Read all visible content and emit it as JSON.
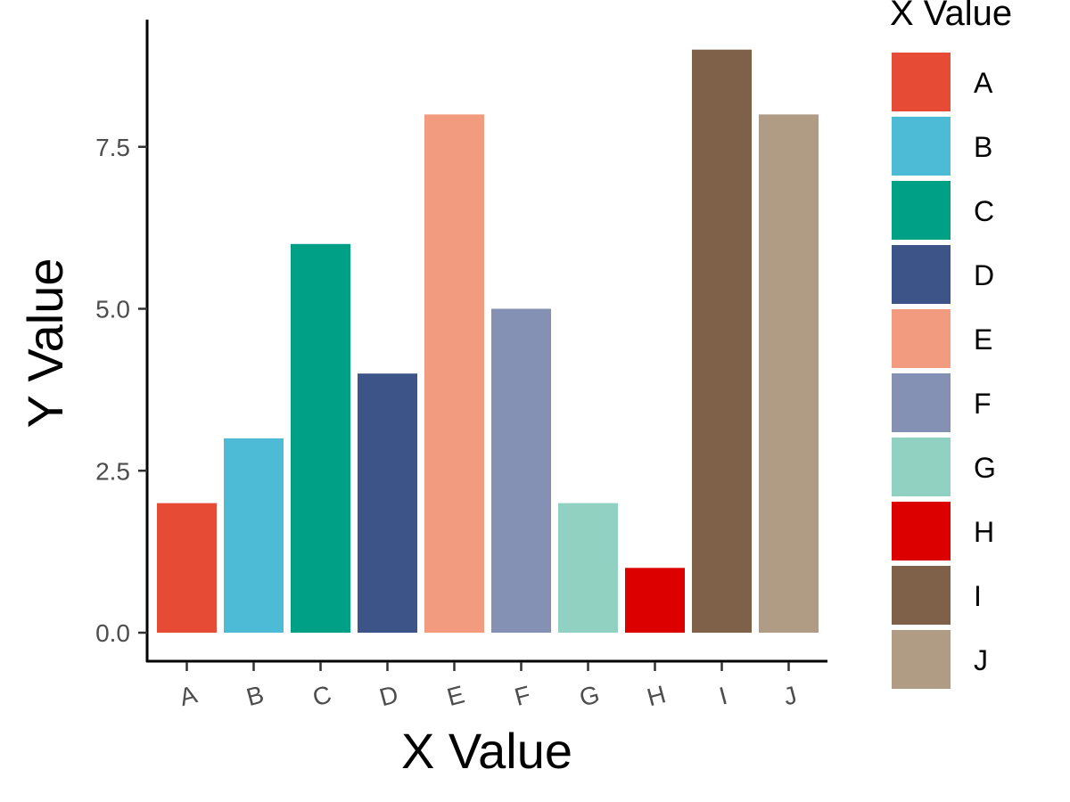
{
  "chart_data": {
    "type": "bar",
    "categories": [
      "A",
      "B",
      "C",
      "D",
      "E",
      "F",
      "G",
      "H",
      "I",
      "J"
    ],
    "values": [
      2,
      3,
      6,
      4,
      8,
      5,
      2,
      1,
      9,
      8
    ],
    "colors": [
      "#E64B35",
      "#4DBBD5",
      "#00A087",
      "#3C5488",
      "#F39B7F",
      "#8491B4",
      "#91D1C2",
      "#DC0000",
      "#7E6148",
      "#B09C85"
    ],
    "xlabel": "X Value",
    "ylabel": "Y Value",
    "ylim": [
      0,
      9
    ],
    "yticks": [
      0,
      2.5,
      5,
      7.5
    ],
    "ytick_labels": [
      "0.0",
      "2.5",
      "5.0",
      "7.5"
    ],
    "legend": {
      "title": "X Value",
      "placement": "right",
      "labels": [
        "A",
        "B",
        "C",
        "D",
        "E",
        "F",
        "G",
        "H",
        "I",
        "J"
      ]
    },
    "grid": false
  }
}
